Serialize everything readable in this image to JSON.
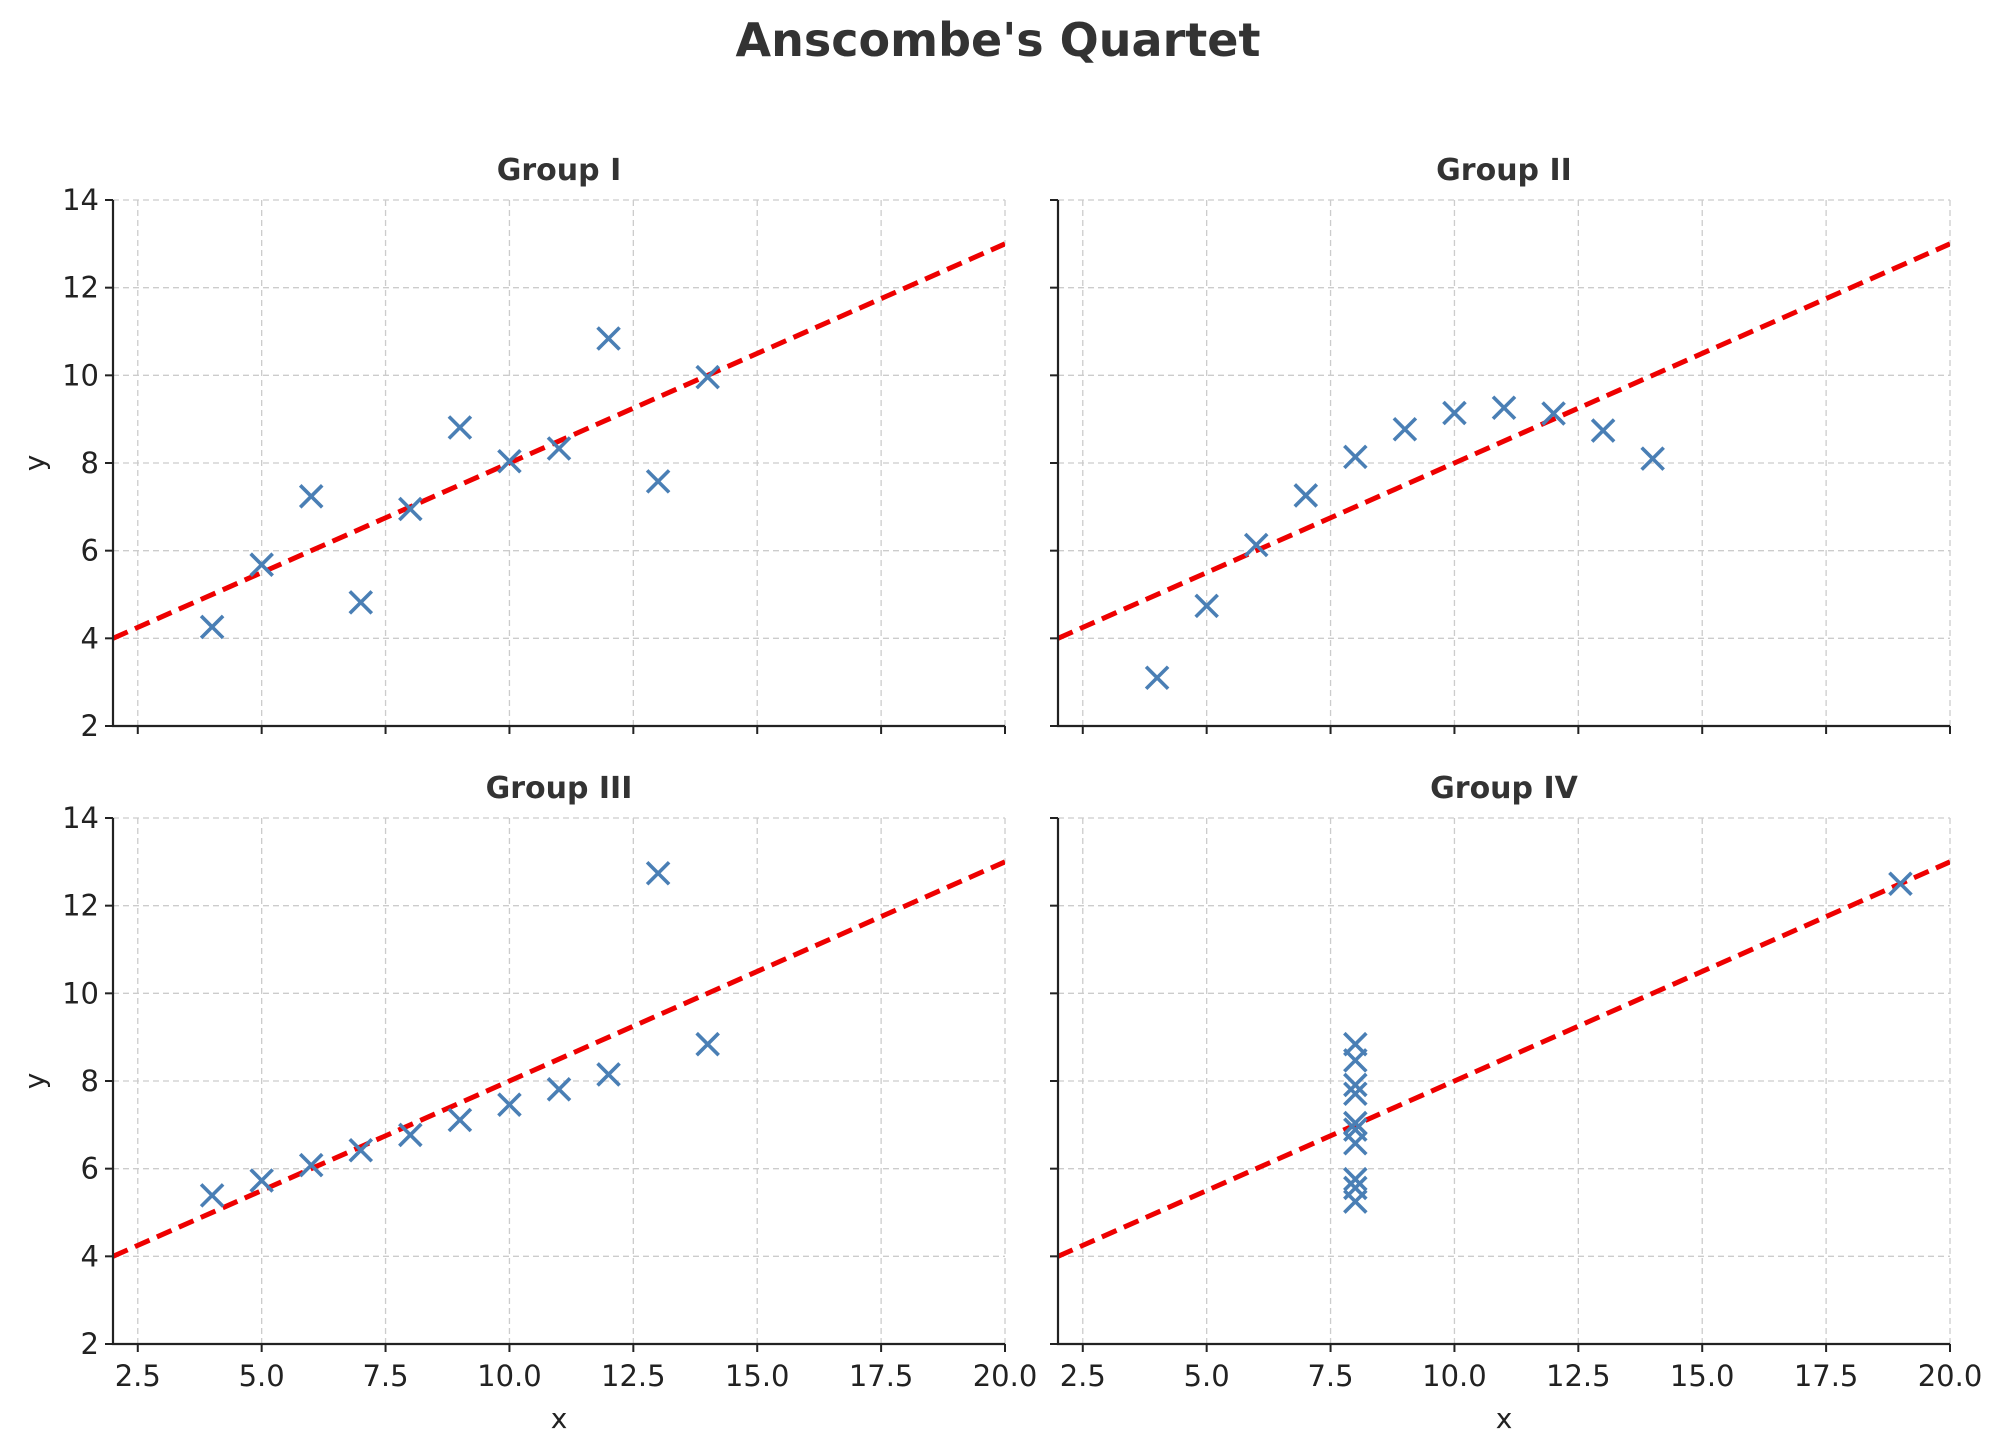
{
  "chart_data": {
    "type": "scatter",
    "title": "Anscombe's Quartet",
    "xlabel": "x",
    "ylabel": "y",
    "xlim": [
      2,
      20
    ],
    "ylim": [
      2,
      14
    ],
    "x_ticks": [
      "2.5",
      "5.0",
      "7.5",
      "10.0",
      "12.5",
      "15.0",
      "17.5",
      "20.0"
    ],
    "y_ticks": [
      "2",
      "4",
      "6",
      "8",
      "10",
      "12",
      "14"
    ],
    "grid": true,
    "marker": "x",
    "colors": {
      "points": "#4a7fb5",
      "fit_line": "#ee0000"
    },
    "fit_line": {
      "intercept": 3.0,
      "slope": 0.5,
      "style": "dashed"
    },
    "panels": [
      {
        "title": "Group I",
        "x": [
          10,
          8,
          13,
          9,
          11,
          14,
          6,
          4,
          12,
          7,
          5
        ],
        "y": [
          8.04,
          6.95,
          7.58,
          8.81,
          8.33,
          9.96,
          7.24,
          4.26,
          10.84,
          4.82,
          5.68
        ]
      },
      {
        "title": "Group II",
        "x": [
          10,
          8,
          13,
          9,
          11,
          14,
          6,
          4,
          12,
          7,
          5
        ],
        "y": [
          9.14,
          8.14,
          8.74,
          8.77,
          9.26,
          8.1,
          6.13,
          3.1,
          9.13,
          7.26,
          4.74
        ]
      },
      {
        "title": "Group III",
        "x": [
          10,
          8,
          13,
          9,
          11,
          14,
          6,
          4,
          12,
          7,
          5
        ],
        "y": [
          7.46,
          6.77,
          12.74,
          7.11,
          7.81,
          8.84,
          6.08,
          5.39,
          8.15,
          6.42,
          5.73
        ]
      },
      {
        "title": "Group IV",
        "x": [
          8,
          8,
          8,
          8,
          8,
          8,
          8,
          19,
          8,
          8,
          8
        ],
        "y": [
          6.58,
          5.76,
          7.71,
          8.84,
          8.47,
          7.04,
          5.25,
          12.5,
          5.56,
          7.91,
          6.89
        ]
      }
    ]
  }
}
